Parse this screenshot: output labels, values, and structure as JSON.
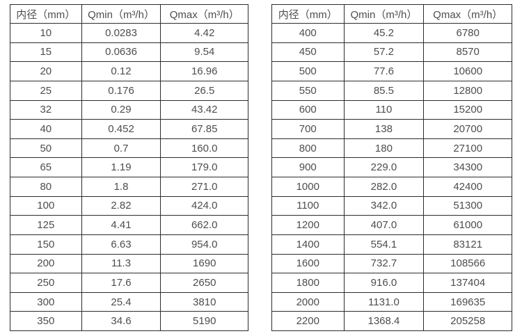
{
  "chart_data": [
    {
      "type": "table",
      "headers": [
        "内径（mm）",
        "Qmin（m³/h）",
        "Qmax（m³/h）"
      ],
      "rows": [
        [
          "10",
          "0.0283",
          "4.42"
        ],
        [
          "15",
          "0.0636",
          "9.54"
        ],
        [
          "20",
          "0.12",
          "16.96"
        ],
        [
          "25",
          "0.176",
          "26.5"
        ],
        [
          "32",
          "0.29",
          "43.42"
        ],
        [
          "40",
          "0.452",
          "67.85"
        ],
        [
          "50",
          "0.7",
          "160.0"
        ],
        [
          "65",
          "1.19",
          "179.0"
        ],
        [
          "80",
          "1.8",
          "271.0"
        ],
        [
          "100",
          "2.82",
          "424.0"
        ],
        [
          "125",
          "4.41",
          "662.0"
        ],
        [
          "150",
          "6.63",
          "954.0"
        ],
        [
          "200",
          "11.3",
          "1690"
        ],
        [
          "250",
          "17.6",
          "2650"
        ],
        [
          "300",
          "25.4",
          "3810"
        ],
        [
          "350",
          "34.6",
          "5190"
        ]
      ]
    },
    {
      "type": "table",
      "headers": [
        "内径（mm）",
        "Qmin（m³/h）",
        "Qmax（m³/h）"
      ],
      "rows": [
        [
          "400",
          "45.2",
          "6780"
        ],
        [
          "450",
          "57.2",
          "8570"
        ],
        [
          "500",
          "77.6",
          "10600"
        ],
        [
          "550",
          "85.5",
          "12800"
        ],
        [
          "600",
          "110",
          "15200"
        ],
        [
          "700",
          "138",
          "20700"
        ],
        [
          "800",
          "180",
          "27100"
        ],
        [
          "900",
          "229.0",
          "34300"
        ],
        [
          "1000",
          "282.0",
          "42400"
        ],
        [
          "1100",
          "342.0",
          "51300"
        ],
        [
          "1200",
          "407.0",
          "61000"
        ],
        [
          "1400",
          "554.1",
          "83121"
        ],
        [
          "1600",
          "732.7",
          "108566"
        ],
        [
          "1800",
          "916.0",
          "137404"
        ],
        [
          "2000",
          "1131.0",
          "169635"
        ],
        [
          "2200",
          "1368.4",
          "205258"
        ]
      ]
    }
  ],
  "colors": {
    "border": "#2b2b2b",
    "text": "#4d4d4d",
    "background": "#ffffff"
  }
}
